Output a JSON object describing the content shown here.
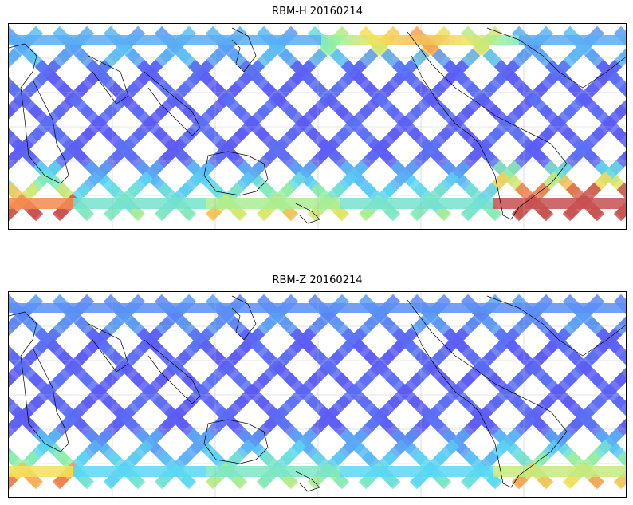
{
  "panels": [
    {
      "title": "RBM-H 20160214",
      "colormap": "jet",
      "features": {
        "south_high_values": true,
        "north_high_band": true
      }
    },
    {
      "title": "RBM-Z 20160214",
      "colormap": "jet",
      "features": {
        "south_high_values": true,
        "north_high_band": false
      }
    }
  ],
  "map": {
    "projection": "PlateCarree",
    "central_longitude": 180,
    "lat_extent": [
      -70,
      70
    ],
    "gridlines": true,
    "coastlines": true,
    "track_color_low": "#5c5cf5",
    "track_color_mid": "#5ad3f5",
    "track_color_high": "#f5e05a",
    "track_color_max": "#c85050"
  }
}
